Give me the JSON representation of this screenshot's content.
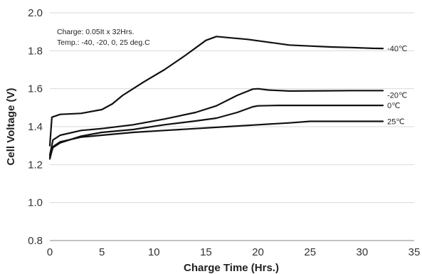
{
  "chart_data": {
    "type": "line",
    "title": "",
    "xlabel": "Charge Time (Hrs.)",
    "ylabel": "Cell Voltage (V)",
    "xlim": [
      0,
      35
    ],
    "ylim": [
      0.8,
      2.0
    ],
    "xticks": [
      "0",
      "5",
      "10",
      "15",
      "20",
      "25",
      "30",
      "35"
    ],
    "yticks": [
      "0.8",
      "1.0",
      "1.2",
      "1.4",
      "1.6",
      "1.8",
      "2.0"
    ],
    "grid": "horizontal",
    "annotations": [
      "Charge: 0.05It  x 32Hrs.",
      "Temp.: -40, -20, 0, 25 deg.C"
    ],
    "series": [
      {
        "name": "-40℃",
        "x": [
          0,
          0.2,
          1,
          3,
          5,
          6,
          7,
          9,
          11,
          13,
          15,
          16,
          17,
          19,
          21,
          23,
          25,
          27,
          29,
          31,
          32
        ],
        "y": [
          1.3,
          1.45,
          1.465,
          1.47,
          1.49,
          1.52,
          1.565,
          1.635,
          1.7,
          1.775,
          1.855,
          1.875,
          1.87,
          1.86,
          1.845,
          1.83,
          1.825,
          1.82,
          1.817,
          1.813,
          1.812
        ]
      },
      {
        "name": "-20℃",
        "x": [
          0,
          0.3,
          1,
          3,
          5,
          8,
          11,
          14,
          16,
          18,
          19.5,
          20,
          21,
          23,
          26,
          29,
          32
        ],
        "y": [
          1.25,
          1.33,
          1.355,
          1.38,
          1.39,
          1.41,
          1.44,
          1.475,
          1.51,
          1.565,
          1.598,
          1.6,
          1.593,
          1.588,
          1.589,
          1.59,
          1.59
        ],
        "label": "-20℃"
      },
      {
        "name": "0℃",
        "x": [
          0,
          0.3,
          1,
          3,
          5,
          8,
          11,
          14,
          16,
          18,
          19.5,
          20,
          22,
          25,
          28,
          32
        ],
        "y": [
          1.24,
          1.29,
          1.315,
          1.35,
          1.37,
          1.385,
          1.41,
          1.43,
          1.445,
          1.475,
          1.505,
          1.51,
          1.512,
          1.512,
          1.512,
          1.512
        ]
      },
      {
        "name": "25℃",
        "x": [
          0,
          0.3,
          1,
          3,
          5,
          8,
          11,
          14,
          17,
          20,
          23,
          25,
          28,
          32
        ],
        "y": [
          1.23,
          1.295,
          1.32,
          1.345,
          1.355,
          1.37,
          1.38,
          1.39,
          1.4,
          1.41,
          1.42,
          1.428,
          1.428,
          1.428
        ]
      }
    ]
  }
}
